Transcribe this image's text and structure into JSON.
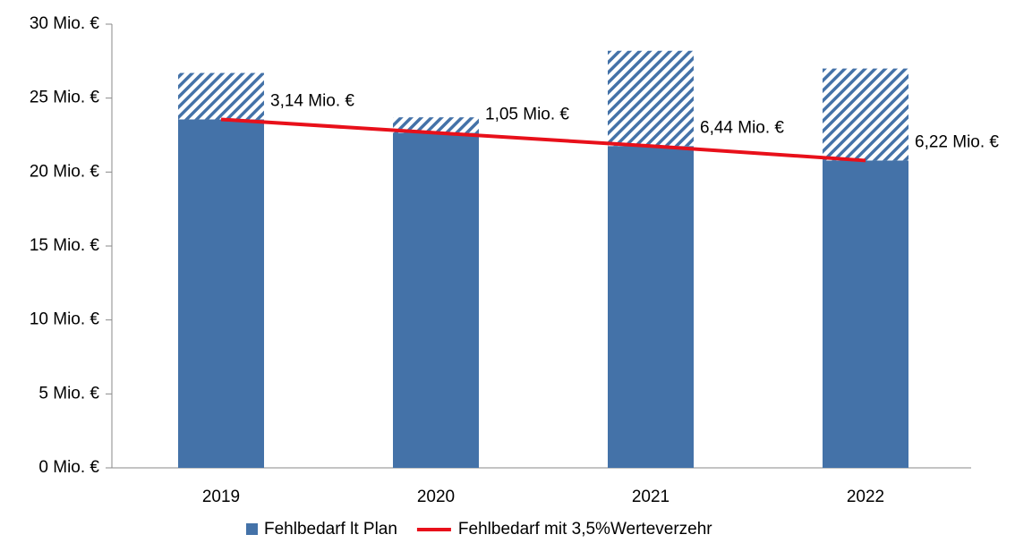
{
  "chart_data": {
    "type": "bar",
    "categories": [
      "2019",
      "2020",
      "2021",
      "2022"
    ],
    "series": [
      {
        "name": "Fehlbedarf lt Plan",
        "color": "#4472a8",
        "values": [
          23.56,
          22.65,
          21.76,
          20.78
        ]
      },
      {
        "color": "#4472a8",
        "values": [
          3.14,
          1.05,
          6.44,
          6.22
        ],
        "value_labels": [
          "3,14 Mio. €",
          "1,05 Mio. €",
          "6,44 Mio. €",
          "6,22 Mio. €"
        ]
      },
      {
        "name": "Fehlbedarf mit 3,5%Werteverzehr",
        "type": "line",
        "color": "#e8101a",
        "values": [
          23.56,
          22.65,
          21.76,
          20.78
        ]
      }
    ],
    "ylim": [
      0,
      30
    ],
    "yticks": [
      {
        "value": 0,
        "label": "0 Mio. €"
      },
      {
        "value": 5,
        "label": "5 Mio. €"
      },
      {
        "value": 10,
        "label": "10 Mio. €"
      },
      {
        "value": 15,
        "label": "15 Mio. €"
      },
      {
        "value": 20,
        "label": "20 Mio. €"
      },
      {
        "value": 25,
        "label": "25 Mio. €"
      },
      {
        "value": 30,
        "label": "30 Mio. €"
      }
    ],
    "grid": false
  }
}
